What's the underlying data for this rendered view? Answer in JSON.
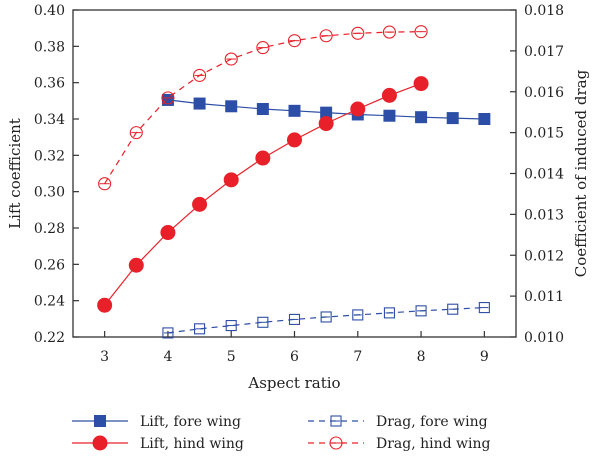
{
  "chart_data": {
    "type": "line",
    "xlabel": "Aspect ratio",
    "ylabel_left": "Lift coefficient",
    "ylabel_right": "Coefficient of induced drag",
    "x_range": [
      2.5,
      9.5
    ],
    "x_ticks": [
      3,
      4,
      5,
      6,
      7,
      8,
      9
    ],
    "left_range": [
      0.22,
      0.4
    ],
    "left_ticks": [
      "0.22",
      "0.24",
      "0.26",
      "0.28",
      "0.30",
      "0.32",
      "0.34",
      "0.36",
      "0.38",
      "0.40"
    ],
    "right_range": [
      0.01,
      0.018
    ],
    "right_ticks": [
      "0.010",
      "0.011",
      "0.012",
      "0.013",
      "0.014",
      "0.015",
      "0.016",
      "0.017",
      "0.018"
    ],
    "grid": false,
    "legend_position": "bottom",
    "series": [
      {
        "name": "Lift, fore wing",
        "axis": "left",
        "color": "#2d4ea6",
        "marker": "square",
        "filled": true,
        "dashed": false,
        "x": [
          4,
          4.5,
          5,
          5.5,
          6,
          6.5,
          7,
          7.5,
          8,
          8.5,
          9
        ],
        "y": [
          0.3505,
          0.3485,
          0.347,
          0.3455,
          0.3445,
          0.3435,
          0.3425,
          0.3418,
          0.341,
          0.3405,
          0.34
        ]
      },
      {
        "name": "Lift, hind wing",
        "axis": "left",
        "color": "#e8202a",
        "marker": "circle",
        "filled": true,
        "dashed": false,
        "x": [
          3,
          3.5,
          4,
          4.5,
          5,
          5.5,
          6,
          6.5,
          7,
          7.5,
          8
        ],
        "y": [
          0.2375,
          0.2595,
          0.2775,
          0.293,
          0.3065,
          0.3185,
          0.3285,
          0.3375,
          0.3455,
          0.353,
          0.3595
        ]
      },
      {
        "name": "Drag, fore wing",
        "axis": "right",
        "color": "#2d4ea6",
        "marker": "square",
        "filled": false,
        "dashed": true,
        "x": [
          4,
          4.5,
          5,
          5.5,
          6,
          6.5,
          7,
          7.5,
          8,
          8.5,
          9
        ],
        "y": [
          0.0101,
          0.0102,
          0.01028,
          0.01036,
          0.01043,
          0.01049,
          0.01054,
          0.01059,
          0.01064,
          0.01068,
          0.01072
        ]
      },
      {
        "name": "Drag, hind wing",
        "axis": "right",
        "color": "#e8202a",
        "marker": "circle",
        "filled": false,
        "dashed": true,
        "x": [
          3,
          3.5,
          4,
          4.5,
          5,
          5.5,
          6,
          6.5,
          7,
          7.5,
          8
        ],
        "y": [
          0.01375,
          0.015,
          0.01585,
          0.0164,
          0.0168,
          0.01708,
          0.01725,
          0.01737,
          0.01743,
          0.01746,
          0.01747
        ]
      }
    ]
  }
}
